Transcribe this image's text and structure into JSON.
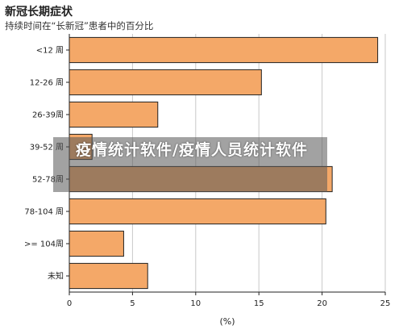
{
  "chart_data": {
    "type": "bar",
    "orientation": "horizontal",
    "title": "新冠长期症状",
    "subtitle": "持续时间在“长新冠”患者中的百分比",
    "xlabel": "(%)",
    "ylabel": "",
    "xlim": [
      0,
      25
    ],
    "xticks": [
      0,
      5,
      10,
      15,
      20,
      25
    ],
    "grid": true,
    "categories": [
      "<12 周",
      "12-26 周",
      "26-39周",
      "39-52 周",
      "52-78周",
      "78-104 周",
      ">= 104周",
      "未知"
    ],
    "values": [
      24.4,
      15.2,
      7.0,
      1.8,
      20.8,
      20.3,
      4.3,
      6.2
    ],
    "bar_color": "#f4a868",
    "bar_edge_color": "#222222"
  },
  "watermark": {
    "text": "疫情统计软件/疫情人员统计软件"
  }
}
